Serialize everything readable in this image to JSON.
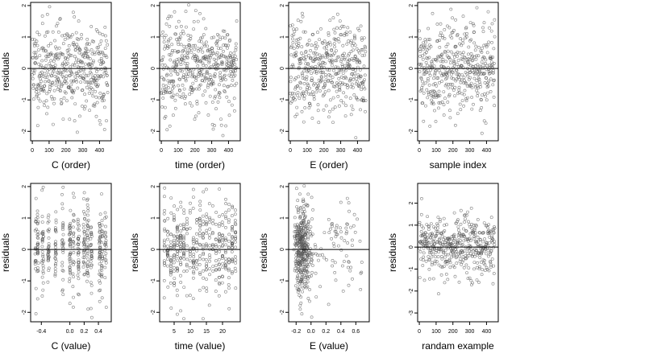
{
  "colors": {
    "frame": "#000000",
    "point": "#555555",
    "refline": "#000000",
    "background": "#ffffff"
  },
  "chart_data": [
    {
      "type": "scatter",
      "xlabel": "C (order)",
      "ylabel": "residuals",
      "xlim": [
        -10,
        470
      ],
      "ylim": [
        -2.3,
        2.1
      ],
      "xticks": [
        0,
        100,
        200,
        300,
        400
      ],
      "xticklabels": [
        "0",
        "100",
        "200",
        "300",
        "400"
      ],
      "yticks": [
        -2,
        -1,
        0,
        1,
        2
      ],
      "yticklabels": [
        "-2",
        "-1",
        "0",
        "1",
        "2"
      ],
      "refline_y": 0,
      "n_points": 450,
      "x_mode": "order",
      "seed": 11
    },
    {
      "type": "scatter",
      "xlabel": "time (order)",
      "ylabel": "residuals",
      "xlim": [
        -10,
        470
      ],
      "ylim": [
        -2.3,
        2.1
      ],
      "xticks": [
        0,
        100,
        200,
        300,
        400
      ],
      "xticklabels": [
        "0",
        "100",
        "200",
        "300",
        "400"
      ],
      "yticks": [
        -2,
        -1,
        0,
        1,
        2
      ],
      "yticklabels": [
        "-2",
        "-1",
        "0",
        "1",
        "2"
      ],
      "refline_y": 0,
      "n_points": 450,
      "x_mode": "order",
      "seed": 23
    },
    {
      "type": "scatter",
      "xlabel": "E (order)",
      "ylabel": "residuals",
      "xlim": [
        -10,
        470
      ],
      "ylim": [
        -2.3,
        2.1
      ],
      "xticks": [
        0,
        100,
        200,
        300,
        400
      ],
      "xticklabels": [
        "0",
        "100",
        "200",
        "300",
        "400"
      ],
      "yticks": [
        -2,
        -1,
        0,
        1,
        2
      ],
      "yticklabels": [
        "-2",
        "-1",
        "0",
        "1",
        "2"
      ],
      "refline_y": 0,
      "n_points": 450,
      "x_mode": "order",
      "seed": 37
    },
    {
      "type": "scatter",
      "xlabel": "sample index",
      "ylabel": "residuals",
      "xlim": [
        -10,
        470
      ],
      "ylim": [
        -2.3,
        2.1
      ],
      "xticks": [
        0,
        100,
        200,
        300,
        400
      ],
      "xticklabels": [
        "0",
        "100",
        "200",
        "300",
        "400"
      ],
      "yticks": [
        -2,
        -1,
        0,
        1,
        2
      ],
      "yticklabels": [
        "-2",
        "-1",
        "0",
        "1",
        "2"
      ],
      "refline_y": 0,
      "n_points": 450,
      "x_mode": "order",
      "seed": 41
    },
    {
      "type": "scatter",
      "xlabel": "C (value)",
      "ylabel": "residuals",
      "xlim": [
        -0.55,
        0.58
      ],
      "ylim": [
        -2.3,
        2.1
      ],
      "xticks": [
        -0.4,
        0.0,
        0.2,
        0.4
      ],
      "xticklabels": [
        "-0.4",
        "0.0",
        "0.2",
        "0.4"
      ],
      "yticks": [
        -2,
        -1,
        0,
        1,
        2
      ],
      "yticklabels": [
        "-2",
        "-1",
        "0",
        "1",
        "2"
      ],
      "refline_y": 0,
      "n_points": 450,
      "x_mode": "clusters",
      "x_clusters": [
        -0.48,
        -0.45,
        -0.38,
        -0.3,
        -0.2,
        -0.1,
        0.0,
        0.05,
        0.12,
        0.2,
        0.25,
        0.3,
        0.42,
        0.45,
        0.5
      ],
      "seed": 53
    },
    {
      "type": "scatter",
      "xlabel": "time (value)",
      "ylabel": "residuals",
      "xlim": [
        0.5,
        25.5
      ],
      "ylim": [
        -2.3,
        2.1
      ],
      "xticks": [
        5,
        10,
        15,
        20
      ],
      "xticklabels": [
        "5",
        "10",
        "15",
        "20"
      ],
      "yticks": [
        -2,
        -1,
        0,
        1,
        2
      ],
      "yticklabels": [
        "-2",
        "-1",
        "0",
        "1",
        "2"
      ],
      "refline_y": 0,
      "n_points": 450,
      "x_mode": "integers",
      "x_range": [
        2,
        24
      ],
      "seed": 67
    },
    {
      "type": "scatter",
      "xlabel": "E (value)",
      "ylabel": "residuals",
      "xlim": [
        -0.3,
        0.78
      ],
      "ylim": [
        -2.3,
        2.1
      ],
      "xticks": [
        -0.2,
        0.0,
        0.2,
        0.4,
        0.6
      ],
      "xticklabels": [
        "-0.2",
        "0.0",
        "0.2",
        "0.4",
        "0.6"
      ],
      "yticks": [
        -2,
        -1,
        0,
        1,
        2
      ],
      "yticklabels": [
        "-2",
        "-1",
        "0",
        "1",
        "2"
      ],
      "refline_y": 0,
      "n_points": 450,
      "x_mode": "skewed",
      "seed": 79
    },
    {
      "type": "scatter",
      "xlabel": "randam example",
      "ylabel": "residuals",
      "xlim": [
        -10,
        470
      ],
      "ylim": [
        -3.4,
        2.9
      ],
      "xticks": [
        0,
        100,
        200,
        300,
        400
      ],
      "xticklabels": [
        "0",
        "100",
        "200",
        "300",
        "400"
      ],
      "yticks": [
        -3,
        -2,
        -1,
        0,
        1,
        2
      ],
      "yticklabels": [
        "-3",
        "-2",
        "-1",
        "0",
        "1",
        "2"
      ],
      "refline_y": 0,
      "n_points": 450,
      "x_mode": "order",
      "seed": 97
    }
  ]
}
